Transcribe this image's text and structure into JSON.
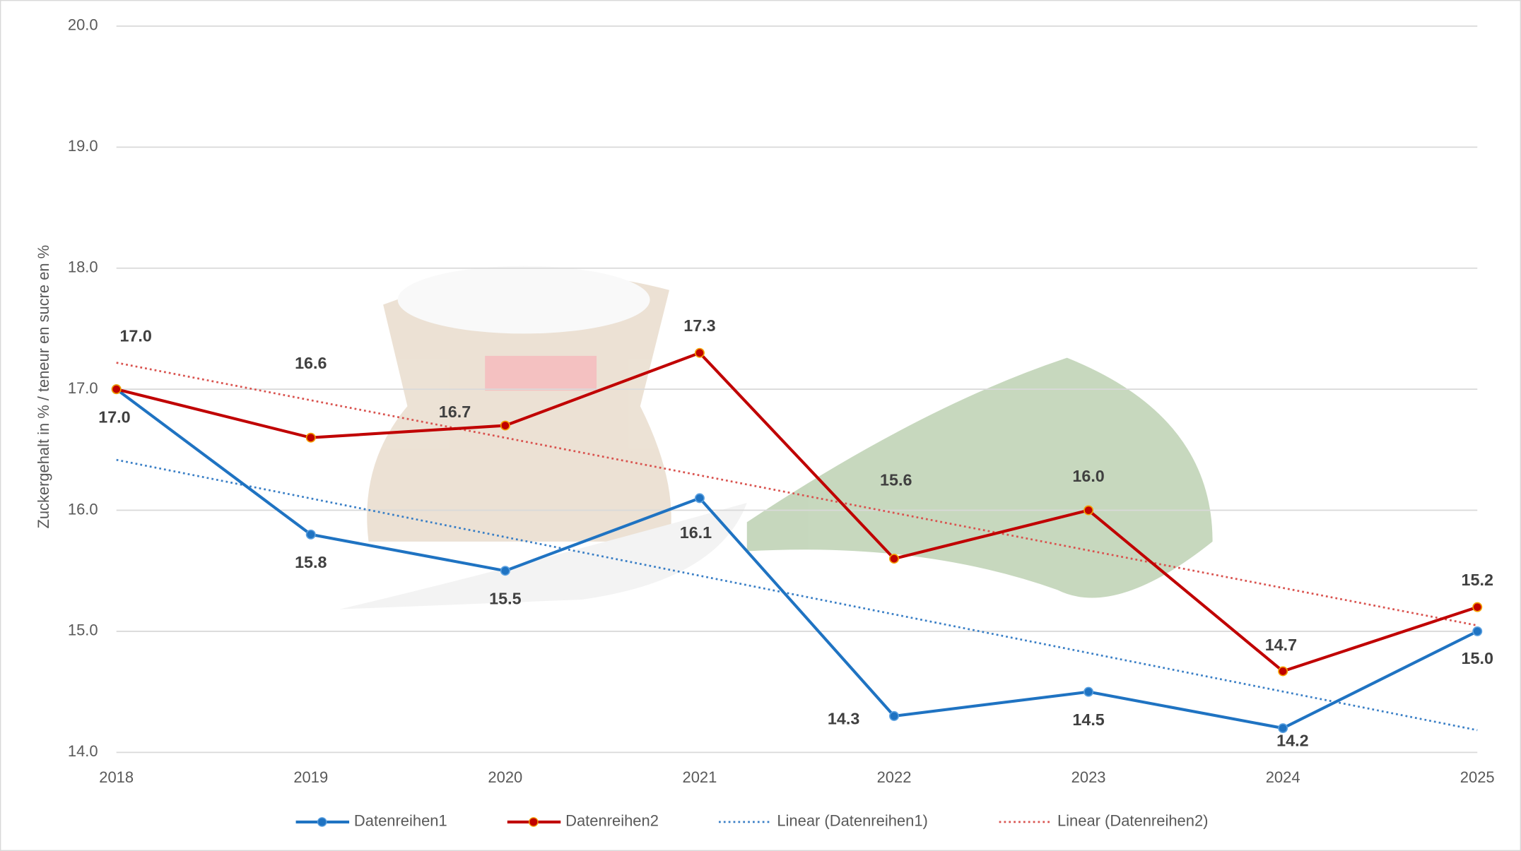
{
  "chart_data": {
    "type": "line",
    "y_axis_label": "Zuckergehalt in % / teneur en sucre en %",
    "categories": [
      "2018",
      "2019",
      "2020",
      "2021",
      "2022",
      "2023",
      "2024",
      "2025"
    ],
    "series": [
      {
        "name": "Datenreihen1",
        "color": "#1f73c2",
        "values": [
          17.0,
          15.8,
          15.5,
          16.1,
          14.3,
          14.5,
          14.2,
          15.0
        ],
        "value_labels": [
          "17.0",
          "15.8",
          "15.5",
          "16.1",
          "14.3",
          "14.5",
          "14.2",
          "15.0"
        ]
      },
      {
        "name": "Datenreihen2",
        "color": "#c00000",
        "values": [
          17.0,
          16.6,
          16.7,
          17.3,
          15.6,
          16.0,
          14.67,
          15.2
        ],
        "value_labels": [
          "17.0",
          "16.6",
          "16.7",
          "17.3",
          "15.6",
          "16.0",
          "14.7",
          "15.2"
        ]
      }
    ],
    "trendlines": [
      {
        "name": "Linear (Datenreihen1)",
        "series": 0,
        "color": "#3a7fc6"
      },
      {
        "name": "Linear (Datenreihen2)",
        "series": 1,
        "color": "#d9534f"
      }
    ],
    "ylim": [
      14,
      20
    ],
    "yticks": [
      {
        "value": 14,
        "label": "14.0"
      },
      {
        "value": 15,
        "label": "15.0"
      },
      {
        "value": 16,
        "label": "16.0"
      },
      {
        "value": 17,
        "label": "17.0"
      },
      {
        "value": 18,
        "label": "18.0"
      },
      {
        "value": 19,
        "label": "19.0"
      },
      {
        "value": 20,
        "label": "20.0"
      }
    ],
    "grid": true,
    "legend": "bottom"
  }
}
